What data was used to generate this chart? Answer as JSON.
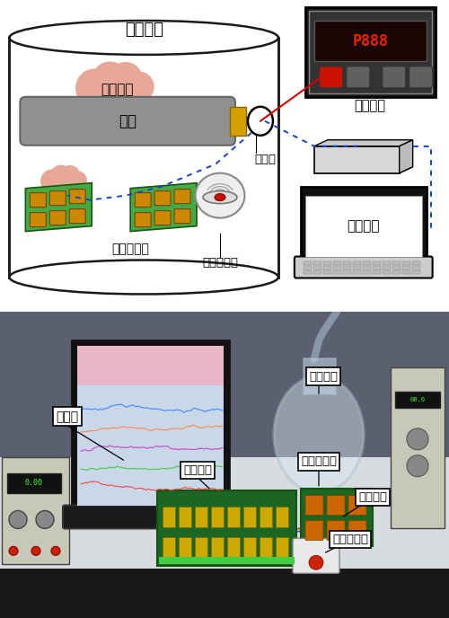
{
  "fig_width": 5.0,
  "fig_height": 6.88,
  "dpi": 100,
  "top_panel": {
    "bg": "#ffffff",
    "labels": {
      "shiyan_qiangti": "实验腔体",
      "fenjie_qiti": "分解气体",
      "dianlan": "电缆",
      "dianzisi": "电热丝",
      "chuanganqi_zhenlie": "传感器阵列",
      "yanwu_baojingqi": "烟雾报警器",
      "caiji_zhuangzhi": "采集装置",
      "fenxi_ruanjian": "分析软件"
    }
  },
  "bottom_panel": {
    "bg": "#2a2830",
    "labels": {
      "shangweiji": "上位机",
      "caiji_zhuangzhi": "采集装置",
      "shiyan_qiangti": "实验腔体",
      "chuanganqi_zhenlie": "传感器阵列",
      "jiare_dianlan": "加热电缆",
      "yanwu_baojingqi": "烟雾报警器"
    }
  },
  "colors": {
    "cylinder_edge": "#1a1a1a",
    "cylinder_fill": "#ffffff",
    "cloud_pink": "#e8a898",
    "cable_gray": "#909090",
    "cable_end_yellow": "#d4a000",
    "sensor_green": "#44aa44",
    "sensor_chip": "#cc8800",
    "red_line": "#dd0000",
    "blue_dot": "#1144cc",
    "device_black": "#111111",
    "display_dark": "#1a0a0a",
    "display_red": "#ee2200",
    "button_red": "#cc1100",
    "button_gray": "#606060",
    "acq_box_face": "#d8d8d8",
    "acq_box_side": "#a0a0a0",
    "laptop_black": "#111111",
    "laptop_white": "#ffffff",
    "laptop_gray": "#cccccc",
    "smoke_det_white": "#eeeeee",
    "smoke_det_red": "#cc1100"
  }
}
